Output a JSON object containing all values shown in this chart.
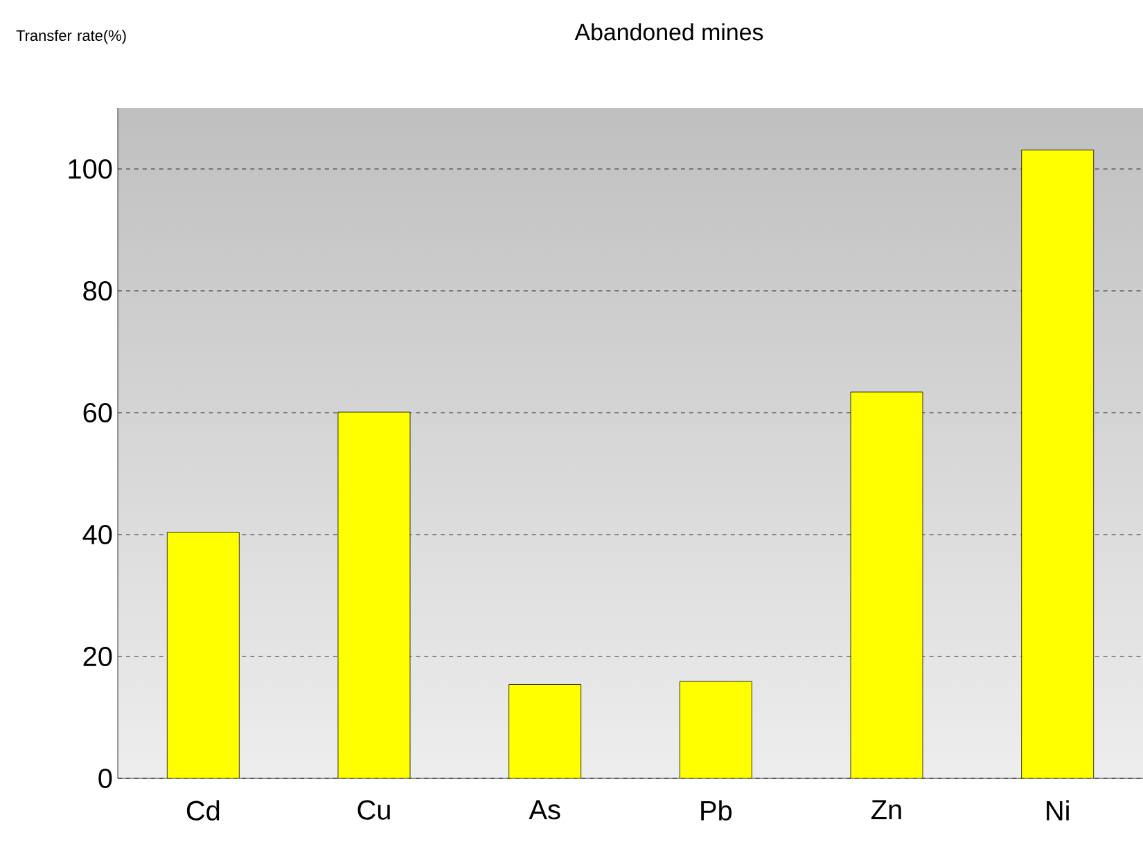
{
  "chart_data": {
    "type": "bar",
    "title": "Abandoned mines",
    "ylabel": "Transfer rate(%)",
    "categories": [
      "Cd",
      "Cu",
      "As",
      "Pb",
      "Zn",
      "Ni"
    ],
    "values": [
      40.4,
      60.1,
      15.4,
      15.9,
      63.4,
      103.1
    ],
    "color": "#ffff00",
    "ylim": [
      0,
      110
    ],
    "yticks": [
      0,
      20,
      40,
      60,
      80,
      100
    ],
    "grid": "y"
  }
}
